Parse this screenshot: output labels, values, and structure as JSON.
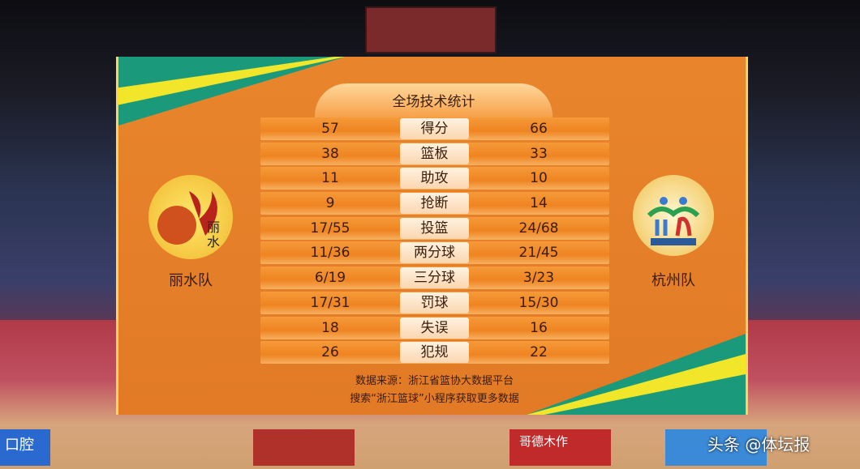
{
  "board": {
    "title": "全场技术统计",
    "home_team": "丽水队",
    "away_team": "杭州队",
    "rows": [
      {
        "home": "57",
        "label": "得分",
        "away": "66"
      },
      {
        "home": "38",
        "label": "篮板",
        "away": "33"
      },
      {
        "home": "11",
        "label": "助攻",
        "away": "10"
      },
      {
        "home": "9",
        "label": "抢断",
        "away": "14"
      },
      {
        "home": "17/55",
        "label": "投篮",
        "away": "24/68"
      },
      {
        "home": "11/36",
        "label": "两分球",
        "away": "21/45"
      },
      {
        "home": "6/19",
        "label": "三分球",
        "away": "3/23"
      },
      {
        "home": "17/31",
        "label": "罚球",
        "away": "15/30"
      },
      {
        "home": "18",
        "label": "失误",
        "away": "16"
      },
      {
        "home": "26",
        "label": "犯规",
        "away": "22"
      }
    ],
    "source": "数据来源：浙江省篮协大数据平台",
    "search_hint": "搜索“浙江篮球”小程序获取更多数据",
    "colors": {
      "board": "#e8852c",
      "accent_green": "#1a9a7a",
      "accent_yellow": "#f2e62a"
    }
  },
  "ads": {
    "left": "口腔",
    "center": "哥德木作"
  },
  "watermark": "头条 @体坛报"
}
